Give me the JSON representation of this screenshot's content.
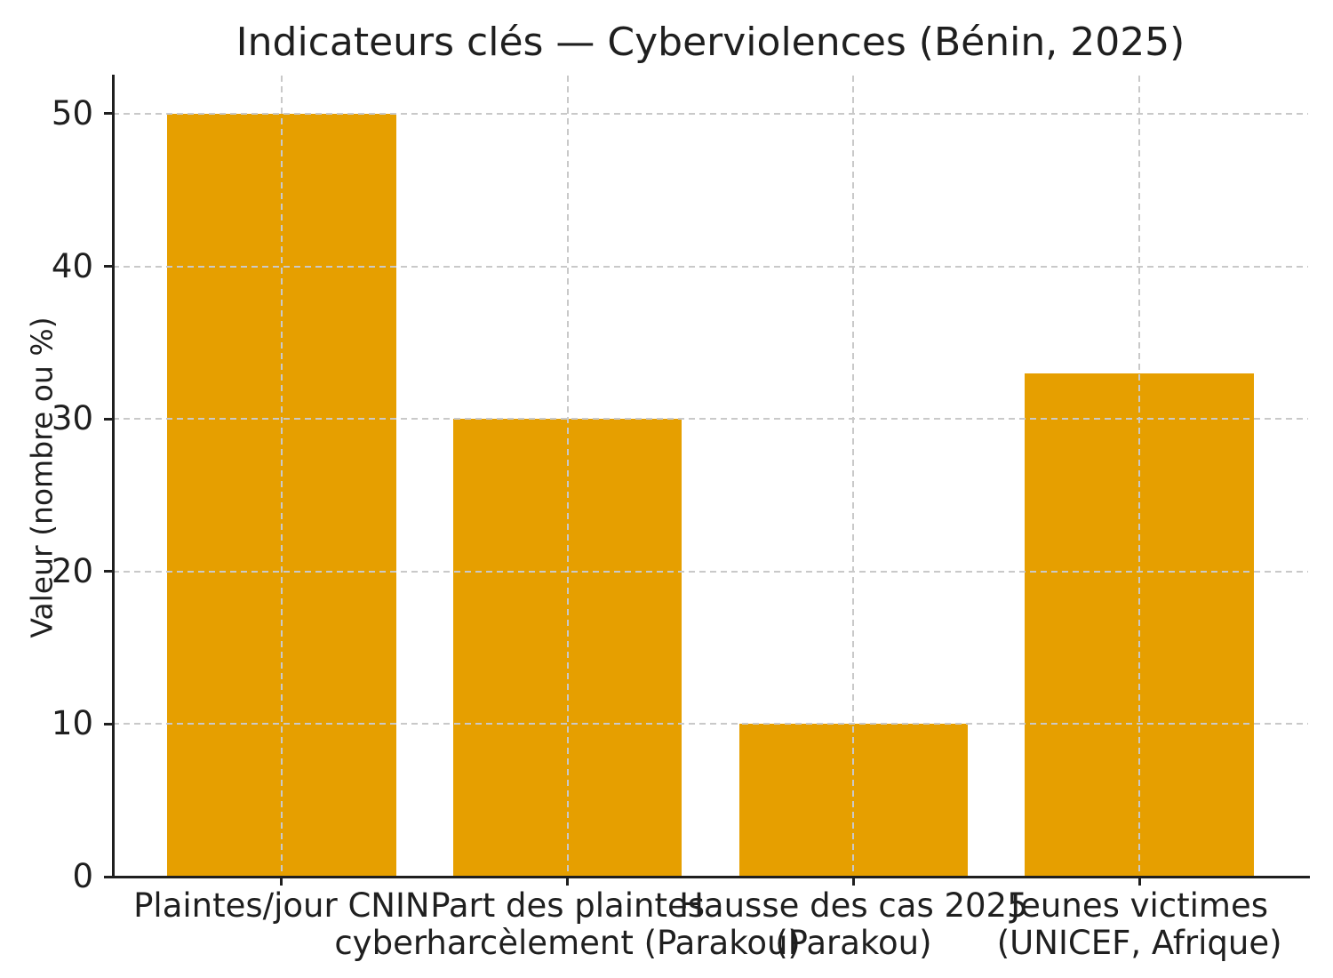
{
  "chart_data": {
    "type": "bar",
    "title": "Indicateurs clés — Cyberviolences (Bénin, 2025)",
    "ylabel": "Valeur (nombre ou %)",
    "xlabel": "",
    "categories": [
      "Plaintes/jour CNIN",
      "Part des plaintes\ncyberharcèlement (Parakou)",
      "Hausse des cas 2025\n(Parakou)",
      "Jeunes victimes\n(UNICEF, Afrique)"
    ],
    "values": [
      50,
      30,
      10,
      33
    ],
    "yticks": [
      0,
      10,
      20,
      30,
      40,
      50
    ],
    "ylim": [
      0,
      52.5
    ],
    "grid": true,
    "grid_style": "dashed",
    "legend": null,
    "bar_color": "#E69F00",
    "grid_color": "#c9c9c9",
    "axis_color": "#1f1f1f",
    "text_color": "#1f1f1f",
    "background_color": "#ffffff"
  }
}
